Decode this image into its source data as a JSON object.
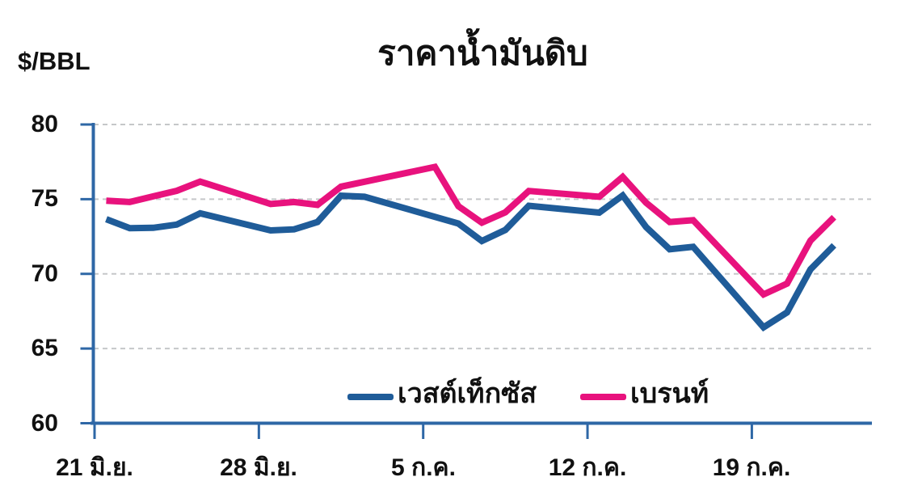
{
  "chart_data": {
    "type": "line",
    "title": "ราคาน้ำมันดิบ",
    "ylabel": "$/BBL",
    "ylim": [
      60,
      80
    ],
    "yticks": [
      80,
      75,
      70,
      65,
      60
    ],
    "xtick_labels": [
      "21 มิ.ย.",
      "28 มิ.ย.",
      "5 ก.ค.",
      "12 ก.ค.",
      "19 ก.ค."
    ],
    "week_tick_day_offsets": [
      0,
      7,
      14,
      21,
      28
    ],
    "x_dates": [
      "21 มิ.ย.",
      "22 มิ.ย.",
      "23 มิ.ย.",
      "24 มิ.ย.",
      "25 มิ.ย.",
      "28 มิ.ย.",
      "29 มิ.ย.",
      "30 มิ.ย.",
      "1 ก.ค.",
      "2 ก.ค.",
      "5 ก.ค.",
      "6 ก.ค.",
      "7 ก.ค.",
      "8 ก.ค.",
      "9 ก.ค.",
      "12 ก.ค.",
      "13 ก.ค.",
      "14 ก.ค.",
      "15 ก.ค.",
      "16 ก.ค.",
      "19 ก.ค.",
      "20 ก.ค.",
      "21 ก.ค.",
      "22 ก.ค."
    ],
    "x_day_offsets": [
      0,
      1,
      2,
      3,
      4,
      7,
      8,
      9,
      10,
      11,
      14,
      15,
      16,
      17,
      18,
      21,
      22,
      23,
      24,
      25,
      28,
      29,
      30,
      31
    ],
    "grid": "horizontal-dashed",
    "legend_position": "bottom-inside",
    "axis_color": "#2E67A6",
    "gridline_color": "#C5C7C9",
    "text_color": "#111111",
    "series": [
      {
        "name": "เวสต์เท็กซัส",
        "color": "#1F5C99",
        "values": [
          73.66,
          73.06,
          73.08,
          73.3,
          74.05,
          72.91,
          72.98,
          73.47,
          75.23,
          75.16,
          null,
          73.37,
          72.2,
          72.94,
          74.56,
          74.1,
          75.25,
          73.13,
          71.65,
          71.81,
          66.42,
          67.42,
          70.3,
          71.91
        ]
      },
      {
        "name": "เบรนท์",
        "color": "#E8127D",
        "values": [
          74.9,
          74.81,
          75.19,
          75.56,
          76.18,
          74.68,
          74.81,
          74.62,
          75.84,
          76.17,
          77.16,
          74.53,
          73.43,
          74.12,
          75.55,
          75.16,
          76.49,
          74.76,
          73.47,
          73.59,
          68.62,
          69.35,
          72.23,
          73.79
        ]
      }
    ]
  }
}
